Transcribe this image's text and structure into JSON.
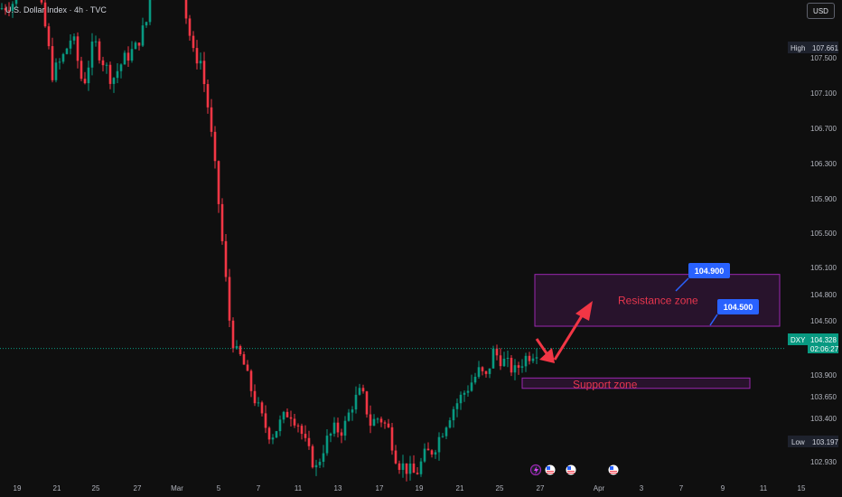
{
  "header": {
    "title": "U.S. Dollar Index · 4h · TVC",
    "currency_button": "USD"
  },
  "price_axis": {
    "ticks": [
      "107.500",
      "107.100",
      "106.700",
      "106.300",
      "105.900",
      "105.500",
      "105.100",
      "104.800",
      "104.500",
      "103.900",
      "103.650",
      "103.400",
      "102.930"
    ],
    "high_label": "High",
    "high_value": "107.661",
    "low_label": "Low",
    "low_value": "103.197",
    "current_symbol": "DXY",
    "current_value": "104.328",
    "countdown": "02:06:27"
  },
  "time_axis": {
    "labels": [
      "19",
      "21",
      "25",
      "27",
      "Mar",
      "5",
      "7",
      "11",
      "13",
      "17",
      "19",
      "21",
      "25",
      "27",
      "Apr",
      "3",
      "7",
      "9",
      "11",
      "15"
    ]
  },
  "annotations": {
    "resistance_label": "Resistance zone",
    "support_label": "Support zone",
    "callout_top": "104.900",
    "callout_mid": "104.500"
  },
  "colors": {
    "bullish": "#089981",
    "bearish": "#f23645",
    "zone": "#9c27b0",
    "zone_text": "#e8364e",
    "callout": "#2962ff",
    "arrow": "#f23645",
    "current_price": "#089981"
  },
  "chart_data": {
    "type": "candlestick",
    "symbol": "DXY",
    "interval": "4h",
    "source": "TVC",
    "high": 107.661,
    "low": 103.197,
    "last": 104.328,
    "ylim": [
      102.85,
      108.3
    ],
    "resistance_zone": [
      104.5,
      104.9
    ],
    "support_zone": [
      104.02,
      104.1
    ],
    "path": [
      [
        0,
        106.95
      ],
      [
        14,
        107.0
      ],
      [
        24,
        107.25
      ],
      [
        36,
        107.15
      ],
      [
        48,
        106.9
      ],
      [
        58,
        106.45
      ],
      [
        68,
        106.55
      ],
      [
        80,
        106.75
      ],
      [
        92,
        106.35
      ],
      [
        104,
        106.7
      ],
      [
        114,
        106.55
      ],
      [
        124,
        106.4
      ],
      [
        136,
        106.55
      ],
      [
        150,
        106.65
      ],
      [
        162,
        106.85
      ],
      [
        170,
        107.3
      ],
      [
        180,
        107.45
      ],
      [
        190,
        107.55
      ],
      [
        198,
        107.35
      ],
      [
        206,
        106.9
      ],
      [
        214,
        106.6
      ],
      [
        222,
        106.55
      ],
      [
        230,
        106.2
      ],
      [
        236,
        105.85
      ],
      [
        242,
        105.45
      ],
      [
        248,
        105.0
      ],
      [
        254,
        104.55
      ],
      [
        260,
        104.3
      ],
      [
        268,
        104.25
      ],
      [
        276,
        104.05
      ],
      [
        284,
        103.9
      ],
      [
        292,
        103.75
      ],
      [
        300,
        103.65
      ],
      [
        310,
        103.75
      ],
      [
        320,
        103.85
      ],
      [
        330,
        103.75
      ],
      [
        340,
        103.55
      ],
      [
        350,
        103.4
      ],
      [
        360,
        103.6
      ],
      [
        370,
        103.7
      ],
      [
        380,
        103.7
      ],
      [
        390,
        103.9
      ],
      [
        400,
        104.0
      ],
      [
        410,
        103.75
      ],
      [
        420,
        103.8
      ],
      [
        430,
        103.7
      ],
      [
        440,
        103.45
      ],
      [
        450,
        103.4
      ],
      [
        460,
        103.35
      ],
      [
        470,
        103.5
      ],
      [
        480,
        103.55
      ],
      [
        490,
        103.7
      ],
      [
        500,
        103.85
      ],
      [
        510,
        103.95
      ],
      [
        520,
        104.05
      ],
      [
        530,
        104.15
      ],
      [
        538,
        104.1
      ],
      [
        546,
        104.3
      ],
      [
        554,
        104.25
      ],
      [
        562,
        104.2
      ],
      [
        570,
        104.15
      ],
      [
        580,
        104.25
      ],
      [
        590,
        104.3
      ],
      [
        596,
        104.33
      ]
    ]
  }
}
